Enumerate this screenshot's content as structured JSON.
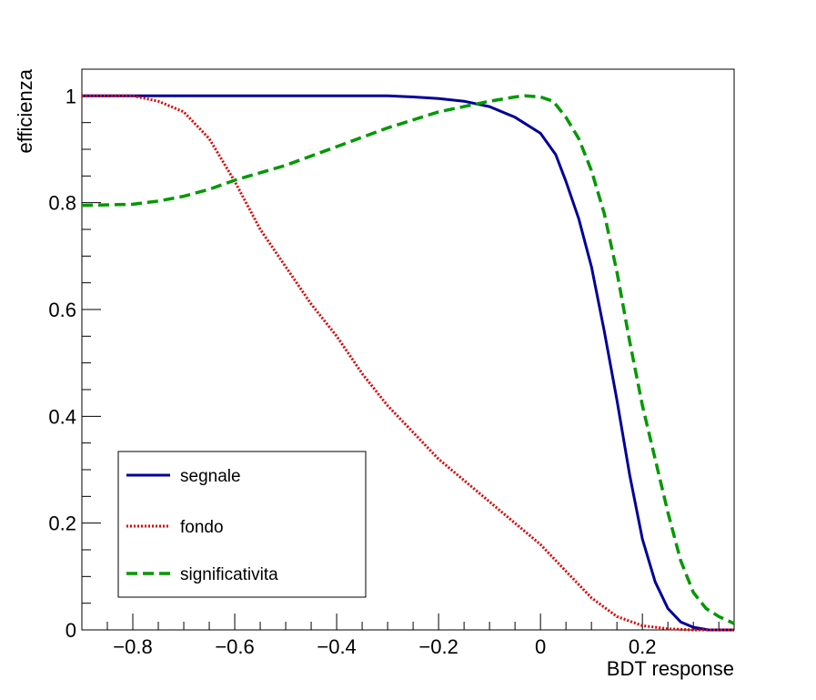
{
  "chart_data": {
    "type": "line",
    "title": "",
    "xlabel": "BDT response",
    "ylabel": "efficienza",
    "xlim": [
      -0.9,
      0.38
    ],
    "ylim": [
      0,
      1.05
    ],
    "grid": false,
    "legend_position": "bottom-left",
    "x_ticks": [
      -0.8,
      -0.6,
      -0.4,
      -0.2,
      0,
      0.2
    ],
    "x_tick_labels": [
      "−0.8",
      "−0.6",
      "−0.4",
      "−0.2",
      "0",
      "0.2"
    ],
    "y_ticks": [
      0,
      0.2,
      0.4,
      0.6,
      0.8,
      1
    ],
    "y_tick_labels": [
      "0",
      "0.2",
      "0.4",
      "0.6",
      "0.8",
      "1"
    ],
    "series": [
      {
        "name": "segnale",
        "color": "#000099",
        "style": "solid",
        "x": [
          -0.9,
          -0.6,
          -0.3,
          -0.25,
          -0.2,
          -0.15,
          -0.1,
          -0.05,
          0.0,
          0.03,
          0.05,
          0.075,
          0.1,
          0.125,
          0.15,
          0.175,
          0.2,
          0.225,
          0.25,
          0.275,
          0.3,
          0.33,
          0.38
        ],
        "y": [
          1.0,
          1.0,
          1.0,
          0.998,
          0.995,
          0.99,
          0.98,
          0.96,
          0.93,
          0.89,
          0.84,
          0.77,
          0.68,
          0.56,
          0.43,
          0.29,
          0.17,
          0.09,
          0.04,
          0.015,
          0.005,
          0.0,
          0.0
        ]
      },
      {
        "name": "fondo",
        "color": "#dd0000",
        "style": "dotted",
        "x": [
          -0.9,
          -0.8,
          -0.75,
          -0.7,
          -0.65,
          -0.6,
          -0.55,
          -0.5,
          -0.45,
          -0.4,
          -0.35,
          -0.3,
          -0.25,
          -0.2,
          -0.15,
          -0.1,
          -0.05,
          0.0,
          0.05,
          0.1,
          0.15,
          0.2,
          0.25,
          0.3,
          0.38
        ],
        "y": [
          1.0,
          1.0,
          0.99,
          0.97,
          0.92,
          0.84,
          0.75,
          0.68,
          0.61,
          0.55,
          0.48,
          0.42,
          0.37,
          0.32,
          0.28,
          0.24,
          0.2,
          0.16,
          0.11,
          0.06,
          0.025,
          0.008,
          0.002,
          0.0,
          0.0
        ]
      },
      {
        "name": "significativita",
        "color": "#009900",
        "style": "dashed",
        "x": [
          -0.9,
          -0.8,
          -0.75,
          -0.7,
          -0.65,
          -0.6,
          -0.5,
          -0.4,
          -0.3,
          -0.2,
          -0.1,
          -0.05,
          -0.03,
          0.0,
          0.025,
          0.05,
          0.075,
          0.1,
          0.125,
          0.15,
          0.175,
          0.2,
          0.225,
          0.25,
          0.275,
          0.3,
          0.325,
          0.35,
          0.38
        ],
        "y": [
          0.795,
          0.797,
          0.803,
          0.812,
          0.825,
          0.842,
          0.87,
          0.905,
          0.94,
          0.97,
          0.99,
          0.998,
          1.0,
          0.998,
          0.99,
          0.96,
          0.92,
          0.86,
          0.78,
          0.67,
          0.54,
          0.42,
          0.32,
          0.22,
          0.13,
          0.07,
          0.04,
          0.025,
          0.012
        ]
      }
    ]
  }
}
